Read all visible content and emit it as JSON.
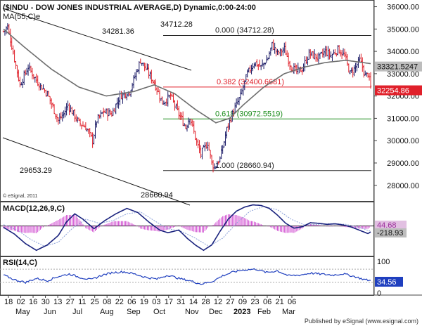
{
  "chart_data": {
    "type": "candlestick",
    "title": "($INDU - DOW JONES INDUSTRIAL AVERAGE,D) Dynamic,0:00-24:00",
    "ma_label": "MA(55,C)e",
    "copyright": "© eSignal, 2011",
    "footer": "Published by eSignal (www.esignal.com)",
    "colors": {
      "up": "#1a1a66",
      "down": "#e0202a",
      "ma": "#6e6e6e",
      "channel": "#1a1a1a",
      "macd": "#1a237e",
      "signal": "#8aa0d8",
      "hist": "#d04ad0",
      "rsi": "#1f3fbf",
      "fib_red": "#e0202a",
      "fib_green": "#1e8e1e"
    },
    "price_axis": {
      "ylim": [
        27300,
        36300
      ],
      "ticks": [
        "28000.00",
        "29000.00",
        "30000.00",
        "31000.00",
        "32000.00",
        "33000.00",
        "34000.00",
        "35000.00",
        "36000.00"
      ],
      "current_label": "33321.5247",
      "last_label": "32254.86"
    },
    "x_axis": {
      "day_labels": [
        "18",
        "02",
        "16",
        "30",
        "13",
        "27",
        "11",
        "25",
        "08",
        "22",
        "06",
        "19",
        "03",
        "17",
        "31",
        "14",
        "28",
        "12",
        "27",
        "09",
        "23",
        "06",
        "21",
        "06"
      ],
      "month_labels": [
        "May",
        "Jun",
        "Jul",
        "Aug",
        "Sep",
        "Oct",
        "Nov",
        "Dec",
        "2023",
        "Feb",
        "Mar"
      ]
    },
    "price_labels": [
      "34281.36",
      "34712.28",
      "29653.29",
      "28660.94"
    ],
    "fib_levels": [
      {
        "label": "0.000 (34712.28)",
        "value": 34712.28
      },
      {
        "label": "0.382 (32400.6681)",
        "value": 32400.6681
      },
      {
        "label": "0.618 (30972.5519)",
        "value": 30972.5519
      },
      {
        "label": "1.000 (28660.94)",
        "value": 28660.94
      }
    ],
    "price_anchors": [
      [
        0,
        34900
      ],
      [
        3,
        35100
      ],
      [
        12,
        32500
      ],
      [
        18,
        33300
      ],
      [
        24,
        32700
      ],
      [
        32,
        32100
      ],
      [
        40,
        30900
      ],
      [
        44,
        31200
      ],
      [
        47,
        31600
      ],
      [
        55,
        30800
      ],
      [
        60,
        30600
      ],
      [
        65,
        30000
      ],
      [
        68,
        30900
      ],
      [
        73,
        31300
      ],
      [
        79,
        31200
      ],
      [
        85,
        32000
      ],
      [
        92,
        32200
      ],
      [
        96,
        32900
      ],
      [
        100,
        33600
      ],
      [
        104,
        33200
      ],
      [
        110,
        32600
      ],
      [
        116,
        31700
      ],
      [
        122,
        32000
      ],
      [
        127,
        31300
      ],
      [
        133,
        30600
      ],
      [
        136,
        31100
      ],
      [
        141,
        29900
      ],
      [
        144,
        29400
      ],
      [
        149,
        29900
      ],
      [
        152,
        29000
      ],
      [
        154,
        28800
      ],
      [
        158,
        29200
      ],
      [
        160,
        29700
      ],
      [
        163,
        30500
      ],
      [
        167,
        31200
      ],
      [
        173,
        32000
      ],
      [
        178,
        33000
      ],
      [
        183,
        33500
      ],
      [
        188,
        33300
      ],
      [
        193,
        33700
      ],
      [
        196,
        34300
      ],
      [
        200,
        33900
      ],
      [
        205,
        34100
      ],
      [
        210,
        33300
      ],
      [
        214,
        33100
      ],
      [
        218,
        33200
      ],
      [
        223,
        33900
      ],
      [
        230,
        33700
      ],
      [
        235,
        34000
      ],
      [
        239,
        33800
      ],
      [
        244,
        34100
      ],
      [
        249,
        33800
      ],
      [
        253,
        33000
      ],
      [
        257,
        33300
      ],
      [
        260,
        33600
      ],
      [
        262,
        33300
      ],
      [
        264,
        32900
      ],
      [
        266,
        33000
      ],
      [
        268,
        32400
      ]
    ],
    "ma_anchors": [
      [
        0,
        35000
      ],
      [
        15,
        34200
      ],
      [
        35,
        33200
      ],
      [
        55,
        32400
      ],
      [
        75,
        32000
      ],
      [
        95,
        32200
      ],
      [
        110,
        32500
      ],
      [
        125,
        32100
      ],
      [
        140,
        31400
      ],
      [
        155,
        30800
      ],
      [
        165,
        31000
      ],
      [
        175,
        31600
      ],
      [
        190,
        32400
      ],
      [
        205,
        33000
      ],
      [
        220,
        33300
      ],
      [
        235,
        33500
      ],
      [
        250,
        33600
      ],
      [
        268,
        33450
      ]
    ],
    "macd": {
      "label": "MACD(12,26,9,C)",
      "values": [
        "44.68",
        "-218.93"
      ],
      "ylim": [
        -1100,
        900
      ],
      "macd_anchors": [
        [
          0,
          -50
        ],
        [
          8,
          -300
        ],
        [
          16,
          -650
        ],
        [
          24,
          -900
        ],
        [
          32,
          -700
        ],
        [
          40,
          -350
        ],
        [
          46,
          150
        ],
        [
          52,
          450
        ],
        [
          58,
          250
        ],
        [
          66,
          -100
        ],
        [
          74,
          200
        ],
        [
          82,
          450
        ],
        [
          90,
          650
        ],
        [
          98,
          500
        ],
        [
          106,
          150
        ],
        [
          114,
          -150
        ],
        [
          120,
          -250
        ],
        [
          128,
          -150
        ],
        [
          134,
          -450
        ],
        [
          140,
          -700
        ],
        [
          146,
          -900
        ],
        [
          152,
          -700
        ],
        [
          158,
          -200
        ],
        [
          164,
          250
        ],
        [
          170,
          550
        ],
        [
          176,
          700
        ],
        [
          182,
          780
        ],
        [
          188,
          760
        ],
        [
          194,
          650
        ],
        [
          200,
          400
        ],
        [
          206,
          100
        ],
        [
          212,
          -80
        ],
        [
          218,
          -30
        ],
        [
          224,
          120
        ],
        [
          230,
          100
        ],
        [
          236,
          60
        ],
        [
          242,
          80
        ],
        [
          248,
          40
        ],
        [
          254,
          -40
        ],
        [
          260,
          -160
        ],
        [
          266,
          -280
        ],
        [
          268,
          -220
        ]
      ],
      "signal_anchors": [
        [
          0,
          50
        ],
        [
          10,
          -150
        ],
        [
          20,
          -500
        ],
        [
          30,
          -750
        ],
        [
          40,
          -600
        ],
        [
          50,
          -100
        ],
        [
          60,
          250
        ],
        [
          70,
          100
        ],
        [
          80,
          200
        ],
        [
          90,
          450
        ],
        [
          100,
          520
        ],
        [
          110,
          200
        ],
        [
          120,
          -100
        ],
        [
          130,
          -200
        ],
        [
          140,
          -450
        ],
        [
          150,
          -750
        ],
        [
          160,
          -450
        ],
        [
          170,
          100
        ],
        [
          180,
          550
        ],
        [
          190,
          720
        ],
        [
          200,
          600
        ],
        [
          210,
          250
        ],
        [
          220,
          30
        ],
        [
          230,
          60
        ],
        [
          240,
          90
        ],
        [
          250,
          60
        ],
        [
          260,
          -50
        ],
        [
          268,
          -200
        ]
      ]
    },
    "rsi": {
      "label": "RSI(14,C)",
      "ticks": [
        "100",
        "0"
      ],
      "value": "34.56",
      "ylim": [
        0,
        100
      ],
      "anchors": [
        [
          0,
          52
        ],
        [
          8,
          38
        ],
        [
          16,
          30
        ],
        [
          24,
          42
        ],
        [
          32,
          35
        ],
        [
          40,
          48
        ],
        [
          48,
          55
        ],
        [
          56,
          45
        ],
        [
          64,
          38
        ],
        [
          72,
          52
        ],
        [
          80,
          60
        ],
        [
          88,
          62
        ],
        [
          96,
          55
        ],
        [
          104,
          45
        ],
        [
          112,
          40
        ],
        [
          120,
          52
        ],
        [
          128,
          42
        ],
        [
          136,
          35
        ],
        [
          144,
          25
        ],
        [
          152,
          32
        ],
        [
          160,
          50
        ],
        [
          168,
          62
        ],
        [
          176,
          68
        ],
        [
          184,
          70
        ],
        [
          192,
          60
        ],
        [
          200,
          65
        ],
        [
          208,
          50
        ],
        [
          216,
          52
        ],
        [
          224,
          58
        ],
        [
          232,
          55
        ],
        [
          240,
          52
        ],
        [
          248,
          56
        ],
        [
          256,
          48
        ],
        [
          262,
          40
        ],
        [
          268,
          35
        ]
      ]
    }
  }
}
